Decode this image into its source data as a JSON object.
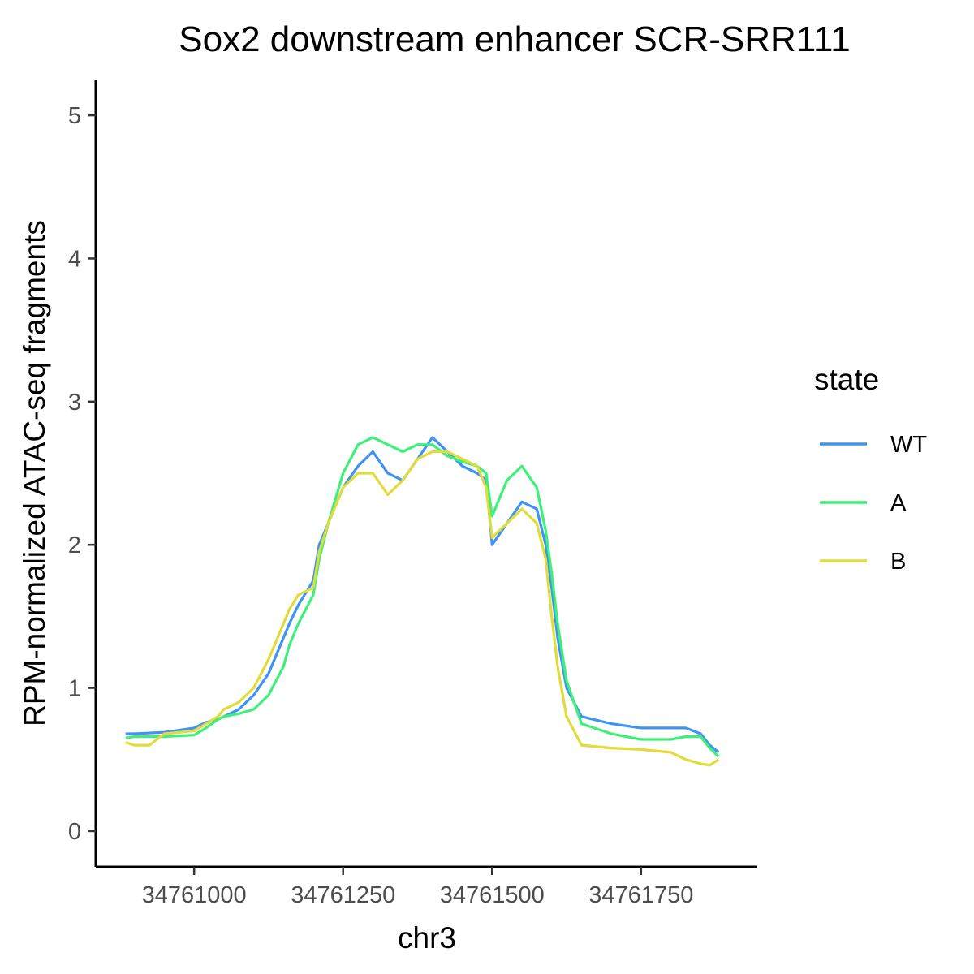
{
  "chart_data": {
    "type": "line",
    "title": "Sox2 downstream enhancer SCR-SRR111",
    "xlabel": "chr3",
    "ylabel": "RPM-normalized ATAC-seq fragments",
    "xlim": [
      34760835,
      34761945
    ],
    "ylim": [
      -0.25,
      5.25
    ],
    "x_ticks": [
      34761000,
      34761250,
      34761500,
      34761750
    ],
    "x_tick_labels": [
      "34761000",
      "34761250",
      "34761500",
      "34761750"
    ],
    "y_ticks": [
      0,
      1,
      2,
      3,
      4,
      5
    ],
    "y_tick_labels": [
      "0",
      "1",
      "2",
      "3",
      "4",
      "5"
    ],
    "grid": false,
    "legend": {
      "title": "state",
      "position": "right"
    },
    "series": [
      {
        "name": "WT",
        "color": "#3d94f5",
        "x": [
          34760885,
          34760900,
          34760950,
          34761000,
          34761020,
          34761040,
          34761050,
          34761075,
          34761100,
          34761125,
          34761150,
          34761160,
          34761175,
          34761200,
          34761210,
          34761225,
          34761250,
          34761275,
          34761300,
          34761325,
          34761350,
          34761375,
          34761400,
          34761425,
          34761450,
          34761475,
          34761490,
          34761500,
          34761525,
          34761550,
          34761575,
          34761590,
          34761600,
          34761610,
          34761625,
          34761650,
          34761700,
          34761750,
          34761800,
          34761825,
          34761850,
          34761865,
          34761880
        ],
        "values": [
          0.68,
          0.68,
          0.69,
          0.72,
          0.76,
          0.78,
          0.8,
          0.85,
          0.95,
          1.1,
          1.35,
          1.45,
          1.58,
          1.75,
          2.0,
          2.15,
          2.4,
          2.55,
          2.65,
          2.5,
          2.45,
          2.6,
          2.75,
          2.65,
          2.55,
          2.5,
          2.45,
          2.0,
          2.15,
          2.3,
          2.25,
          2.0,
          1.7,
          1.35,
          1.0,
          0.8,
          0.75,
          0.72,
          0.72,
          0.72,
          0.68,
          0.6,
          0.55
        ]
      },
      {
        "name": "A",
        "color": "#3ef07a",
        "x": [
          34760885,
          34760900,
          34760950,
          34761000,
          34761020,
          34761040,
          34761050,
          34761075,
          34761100,
          34761125,
          34761150,
          34761160,
          34761175,
          34761200,
          34761210,
          34761225,
          34761250,
          34761275,
          34761300,
          34761325,
          34761350,
          34761375,
          34761400,
          34761425,
          34761450,
          34761475,
          34761490,
          34761500,
          34761525,
          34761550,
          34761575,
          34761590,
          34761600,
          34761610,
          34761625,
          34761650,
          34761700,
          34761750,
          34761800,
          34761825,
          34761850,
          34761865,
          34761880
        ],
        "values": [
          0.65,
          0.66,
          0.66,
          0.67,
          0.72,
          0.78,
          0.8,
          0.82,
          0.85,
          0.95,
          1.15,
          1.3,
          1.45,
          1.65,
          1.9,
          2.15,
          2.5,
          2.7,
          2.75,
          2.7,
          2.65,
          2.7,
          2.7,
          2.62,
          2.58,
          2.55,
          2.5,
          2.2,
          2.45,
          2.55,
          2.4,
          2.1,
          1.8,
          1.45,
          1.05,
          0.75,
          0.68,
          0.64,
          0.64,
          0.66,
          0.66,
          0.58,
          0.52
        ]
      },
      {
        "name": "B",
        "color": "#e0dc3a",
        "x": [
          34760885,
          34760900,
          34760925,
          34760950,
          34761000,
          34761020,
          34761040,
          34761050,
          34761075,
          34761100,
          34761125,
          34761150,
          34761160,
          34761175,
          34761200,
          34761210,
          34761225,
          34761250,
          34761275,
          34761300,
          34761325,
          34761350,
          34761375,
          34761400,
          34761425,
          34761450,
          34761475,
          34761490,
          34761500,
          34761525,
          34761550,
          34761575,
          34761590,
          34761600,
          34761610,
          34761625,
          34761650,
          34761700,
          34761750,
          34761800,
          34761825,
          34761850,
          34761865,
          34761880
        ],
        "values": [
          0.62,
          0.6,
          0.6,
          0.68,
          0.7,
          0.75,
          0.8,
          0.85,
          0.9,
          1.0,
          1.2,
          1.45,
          1.55,
          1.65,
          1.7,
          1.95,
          2.15,
          2.4,
          2.5,
          2.5,
          2.35,
          2.45,
          2.6,
          2.65,
          2.65,
          2.6,
          2.55,
          2.4,
          2.05,
          2.15,
          2.25,
          2.15,
          1.9,
          1.5,
          1.15,
          0.8,
          0.6,
          0.58,
          0.57,
          0.55,
          0.5,
          0.47,
          0.46,
          0.5
        ]
      }
    ]
  }
}
